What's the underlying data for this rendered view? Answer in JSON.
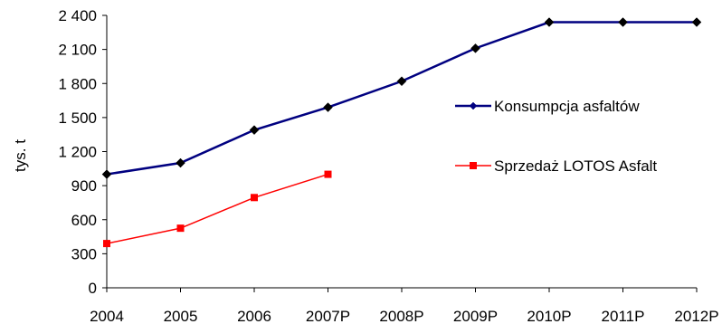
{
  "chart_data": {
    "type": "line",
    "title": "",
    "xlabel": "",
    "ylabel": "tys. t",
    "ylim": [
      0,
      2400
    ],
    "yticks": [
      0,
      300,
      600,
      900,
      1200,
      1500,
      1800,
      2100,
      2400
    ],
    "ytick_labels": [
      "0",
      "300",
      "600",
      "900",
      "1 200",
      "1 500",
      "1 800",
      "2 100",
      "2 400"
    ],
    "categories": [
      "2004",
      "2005",
      "2006",
      "2007P",
      "2008P",
      "2009P",
      "2010P",
      "2011P",
      "2012P"
    ],
    "grid": false,
    "legend_position": "right",
    "series": [
      {
        "name": "Konsumpcja asfaltów",
        "color": "#000080",
        "marker": "diamond",
        "values": [
          1000,
          1100,
          1390,
          1590,
          1820,
          2110,
          2340,
          2340,
          2340
        ]
      },
      {
        "name": "Sprzedaż LOTOS Asfalt",
        "color": "#ff0000",
        "marker": "square",
        "values": [
          390,
          525,
          795,
          1000,
          null,
          null,
          null,
          null,
          null
        ]
      }
    ]
  }
}
